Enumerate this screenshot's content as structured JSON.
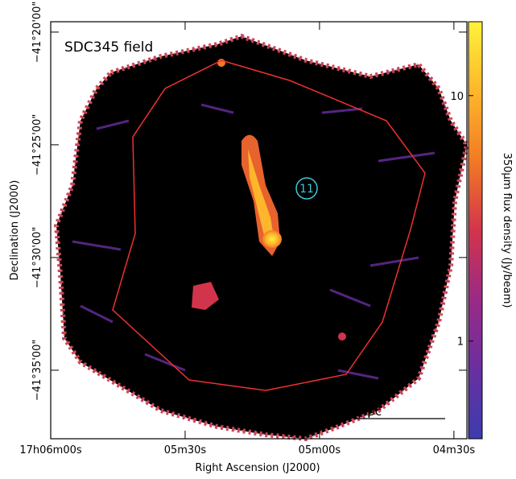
{
  "chart_data": {
    "type": "image",
    "title": "SDC345 field",
    "xlabel": "Right Ascension (J2000)",
    "ylabel": "Declination (J2000)",
    "xlim": [
      360,
      267.1
    ],
    "xticks": [
      {
        "value": 360,
        "label": "17h06m00s"
      },
      {
        "value": 330,
        "label": "05m30s"
      },
      {
        "value": 300,
        "label": "05m00s"
      },
      {
        "value": 270,
        "label": "04m30s"
      }
    ],
    "ylim": [
      -38.04,
      -19.54
    ],
    "yticks": [
      {
        "value": -20,
        "label": "−41°20'00\""
      },
      {
        "value": -25,
        "label": "−41°25'00\""
      },
      {
        "value": -30,
        "label": "−41°30'00\""
      },
      {
        "value": -35,
        "label": "−41°35'00\""
      }
    ],
    "colorbar": {
      "label": "350μm flux density (Jy/beam)",
      "lim": [
        0.4,
        20
      ],
      "log": true,
      "ticks": [
        1,
        10
      ],
      "colormap": [
        "#3b3cae",
        "#6a2fa0",
        "#9a2a86",
        "#d2344c",
        "#f27a24",
        "#ffb62c",
        "#fff23a"
      ]
    },
    "annotations": [
      "11",
      "5 pc"
    ]
  }
}
